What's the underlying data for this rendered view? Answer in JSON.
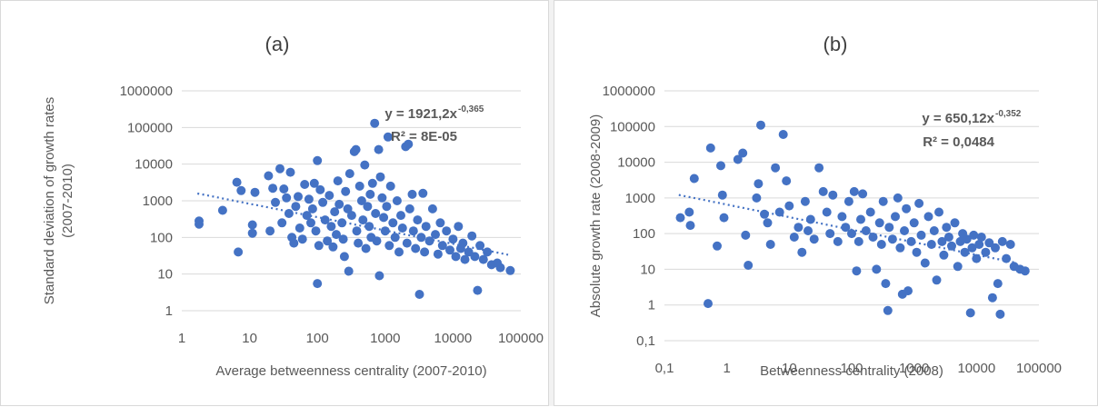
{
  "chart_data": [
    {
      "type": "scatter",
      "title": "(a)",
      "xlabel": "Average betweenness centrality (2007-2010)",
      "ylabel": "Standard deviation of growth rates (2007-2010)",
      "x_scale": "log",
      "y_scale": "log",
      "xlim": [
        1,
        100000
      ],
      "ylim": [
        1,
        1000000
      ],
      "x_ticks": [
        "1",
        "10",
        "100",
        "1000",
        "10000",
        "100000"
      ],
      "y_ticks": [
        "1",
        "10",
        "100",
        "1000",
        "10000",
        "100000",
        "1000000"
      ],
      "grid": "horizontal",
      "equation": "y = 1921,2x",
      "exponent": "-0,365",
      "r2": "R² = 8E-05",
      "trendline": {
        "type": "power",
        "a": 1921.2,
        "b": -0.365,
        "x_range": [
          1.7,
          65000
        ]
      },
      "color": "#4472c4",
      "points": [
        [
          1.8,
          280
        ],
        [
          1.8,
          230
        ],
        [
          4,
          550
        ],
        [
          6.5,
          3200
        ],
        [
          6.8,
          40
        ],
        [
          7.5,
          1900
        ],
        [
          11,
          220
        ],
        [
          11,
          130
        ],
        [
          12,
          1700
        ],
        [
          19,
          4800
        ],
        [
          20,
          150
        ],
        [
          22,
          2200
        ],
        [
          24,
          900
        ],
        [
          28,
          7500
        ],
        [
          30,
          250
        ],
        [
          32,
          2100
        ],
        [
          35,
          1200
        ],
        [
          38,
          450
        ],
        [
          40,
          6000
        ],
        [
          42,
          100
        ],
        [
          45,
          70
        ],
        [
          48,
          700
        ],
        [
          52,
          1300
        ],
        [
          55,
          180
        ],
        [
          60,
          90
        ],
        [
          65,
          2800
        ],
        [
          70,
          400
        ],
        [
          75,
          1100
        ],
        [
          80,
          250
        ],
        [
          85,
          600
        ],
        [
          90,
          3000
        ],
        [
          95,
          150
        ],
        [
          100,
          12500
        ],
        [
          100,
          5.5
        ],
        [
          105,
          60
        ],
        [
          110,
          2000
        ],
        [
          120,
          900
        ],
        [
          130,
          300
        ],
        [
          140,
          80
        ],
        [
          150,
          1400
        ],
        [
          160,
          200
        ],
        [
          170,
          55
        ],
        [
          180,
          500
        ],
        [
          190,
          120
        ],
        [
          200,
          3500
        ],
        [
          210,
          800
        ],
        [
          230,
          250
        ],
        [
          240,
          90
        ],
        [
          250,
          30
        ],
        [
          260,
          1800
        ],
        [
          280,
          600
        ],
        [
          290,
          12
        ],
        [
          300,
          5500
        ],
        [
          320,
          400
        ],
        [
          350,
          22000
        ],
        [
          370,
          25000
        ],
        [
          380,
          150
        ],
        [
          400,
          70
        ],
        [
          420,
          2500
        ],
        [
          450,
          1000
        ],
        [
          470,
          300
        ],
        [
          500,
          9500
        ],
        [
          520,
          50
        ],
        [
          550,
          700
        ],
        [
          580,
          200
        ],
        [
          600,
          1500
        ],
        [
          620,
          100
        ],
        [
          650,
          3000
        ],
        [
          700,
          130000
        ],
        [
          720,
          450
        ],
        [
          750,
          80
        ],
        [
          800,
          25000
        ],
        [
          820,
          9
        ],
        [
          850,
          4500
        ],
        [
          900,
          1200
        ],
        [
          950,
          350
        ],
        [
          1000,
          150
        ],
        [
          1050,
          700
        ],
        [
          1100,
          55000
        ],
        [
          1150,
          60
        ],
        [
          1200,
          2500
        ],
        [
          1300,
          250
        ],
        [
          1400,
          100
        ],
        [
          1500,
          1000
        ],
        [
          1600,
          40
        ],
        [
          1700,
          400
        ],
        [
          1800,
          180
        ],
        [
          2000,
          30000
        ],
        [
          2100,
          70
        ],
        [
          2200,
          35000
        ],
        [
          2300,
          600
        ],
        [
          2500,
          1500
        ],
        [
          2600,
          150
        ],
        [
          2800,
          50
        ],
        [
          3000,
          300
        ],
        [
          3200,
          2.8
        ],
        [
          3400,
          100
        ],
        [
          3600,
          1600
        ],
        [
          3800,
          40
        ],
        [
          4000,
          200
        ],
        [
          4500,
          80
        ],
        [
          5000,
          600
        ],
        [
          5500,
          120
        ],
        [
          6000,
          35
        ],
        [
          6500,
          250
        ],
        [
          7000,
          60
        ],
        [
          8000,
          150
        ],
        [
          9000,
          45
        ],
        [
          10000,
          90
        ],
        [
          11000,
          30
        ],
        [
          12000,
          200
        ],
        [
          13000,
          50
        ],
        [
          14000,
          70
        ],
        [
          15000,
          25
        ],
        [
          17000,
          40
        ],
        [
          19000,
          110
        ],
        [
          21000,
          30
        ],
        [
          23000,
          3.6
        ],
        [
          25000,
          60
        ],
        [
          28000,
          25
        ],
        [
          32000,
          40
        ],
        [
          37000,
          18
        ],
        [
          45000,
          20
        ],
        [
          50000,
          15
        ],
        [
          70000,
          12.5
        ]
      ]
    },
    {
      "type": "scatter",
      "title": "(b)",
      "xlabel": "Betweenness centrality (2008)",
      "ylabel": "Absolute growth rate (2008-2009)",
      "x_scale": "log",
      "y_scale": "log",
      "xlim": [
        0.1,
        100000
      ],
      "ylim": [
        0.1,
        1000000
      ],
      "x_ticks": [
        "0,1",
        "1",
        "10",
        "100",
        "1000",
        "10000",
        "100000"
      ],
      "y_ticks": [
        "0,1",
        "1",
        "10",
        "100",
        "1000",
        "10000",
        "100000",
        "1000000"
      ],
      "grid": "horizontal",
      "equation": "y = 650,12x",
      "exponent": "-0,352",
      "r2": "R² = 0,0484",
      "trendline": {
        "type": "power",
        "a": 650.12,
        "b": -0.352,
        "x_range": [
          0.17,
          40000
        ]
      },
      "color": "#4472c4",
      "points": [
        [
          0.18,
          280
        ],
        [
          0.25,
          400
        ],
        [
          0.26,
          170
        ],
        [
          0.3,
          3500
        ],
        [
          0.5,
          1.1
        ],
        [
          0.55,
          25000
        ],
        [
          0.7,
          45
        ],
        [
          0.8,
          8000
        ],
        [
          0.85,
          1200
        ],
        [
          0.9,
          280
        ],
        [
          1.5,
          12000
        ],
        [
          1.8,
          18000
        ],
        [
          2,
          90
        ],
        [
          2.2,
          13
        ],
        [
          3,
          1000
        ],
        [
          3.2,
          2500
        ],
        [
          3.5,
          110000
        ],
        [
          4,
          350
        ],
        [
          4.5,
          200
        ],
        [
          5,
          50
        ],
        [
          6,
          7000
        ],
        [
          7,
          400
        ],
        [
          8,
          60000
        ],
        [
          9,
          3000
        ],
        [
          10,
          600
        ],
        [
          12,
          80
        ],
        [
          14,
          150
        ],
        [
          16,
          30
        ],
        [
          18,
          800
        ],
        [
          20,
          120
        ],
        [
          22,
          250
        ],
        [
          25,
          70
        ],
        [
          30,
          7000
        ],
        [
          35,
          1500
        ],
        [
          40,
          400
        ],
        [
          45,
          100
        ],
        [
          50,
          1200
        ],
        [
          60,
          60
        ],
        [
          70,
          300
        ],
        [
          80,
          150
        ],
        [
          90,
          800
        ],
        [
          100,
          100
        ],
        [
          110,
          1500
        ],
        [
          120,
          9
        ],
        [
          130,
          60
        ],
        [
          140,
          250
        ],
        [
          150,
          1300
        ],
        [
          170,
          120
        ],
        [
          200,
          400
        ],
        [
          220,
          80
        ],
        [
          250,
          10
        ],
        [
          280,
          200
        ],
        [
          300,
          50
        ],
        [
          320,
          800
        ],
        [
          350,
          4
        ],
        [
          380,
          0.7
        ],
        [
          400,
          150
        ],
        [
          450,
          70
        ],
        [
          500,
          300
        ],
        [
          550,
          1000
        ],
        [
          600,
          40
        ],
        [
          650,
          2
        ],
        [
          700,
          120
        ],
        [
          750,
          500
        ],
        [
          800,
          2.5
        ],
        [
          900,
          60
        ],
        [
          1000,
          200
        ],
        [
          1100,
          30
        ],
        [
          1200,
          700
        ],
        [
          1300,
          90
        ],
        [
          1500,
          15
        ],
        [
          1700,
          300
        ],
        [
          1900,
          50
        ],
        [
          2100,
          120
        ],
        [
          2300,
          5
        ],
        [
          2500,
          400
        ],
        [
          2800,
          60
        ],
        [
          3000,
          25
        ],
        [
          3300,
          150
        ],
        [
          3600,
          80
        ],
        [
          4000,
          45
        ],
        [
          4500,
          200
        ],
        [
          5000,
          12
        ],
        [
          5500,
          60
        ],
        [
          6000,
          100
        ],
        [
          6500,
          30
        ],
        [
          7000,
          70
        ],
        [
          8000,
          0.6
        ],
        [
          8500,
          40
        ],
        [
          9000,
          90
        ],
        [
          10000,
          20
        ],
        [
          11000,
          50
        ],
        [
          12000,
          80
        ],
        [
          14000,
          30
        ],
        [
          16000,
          55
        ],
        [
          18000,
          1.6
        ],
        [
          20000,
          40
        ],
        [
          22000,
          4
        ],
        [
          24000,
          0.55
        ],
        [
          26000,
          60
        ],
        [
          30000,
          20
        ],
        [
          35000,
          50
        ],
        [
          40000,
          12
        ],
        [
          50000,
          10
        ],
        [
          60000,
          9
        ]
      ]
    }
  ]
}
